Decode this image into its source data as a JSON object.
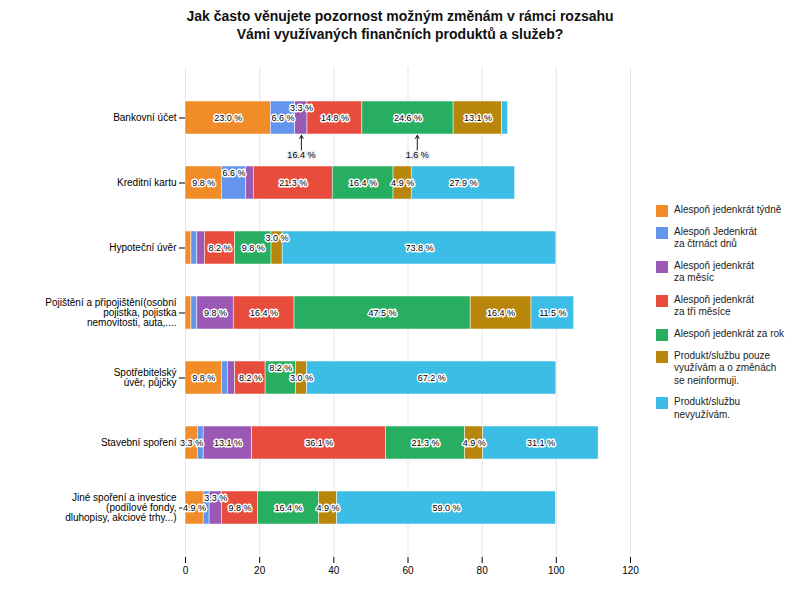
{
  "chart_data": {
    "type": "bar",
    "orientation": "horizontal",
    "stacked": true,
    "title": "Jak často věnujete pozornost možným změnám v rámci rozsahu\nVámi využívaných finančních produktů a služeb?",
    "categories": [
      "Bankovní účet",
      "Kreditní kartu",
      "Hypoteční úvěr",
      "Pojištění a připojištění(osobní\npojistka, pojistka\nnemovitosti, auta,....",
      "Spotřebitelský\núvěr, půjčky",
      "Stavební spoření",
      "Jiné spoření a investice\n(podílové fondy,\ndluhopisy, akciové trhy...)"
    ],
    "series": [
      {
        "name": "Alespoň jedenkrát týdně",
        "color": "#F28C28",
        "values": [
          23.0,
          9.8,
          1.6,
          1.6,
          9.8,
          3.3,
          4.9
        ],
        "value_labels": [
          "23.0 %",
          "9.8 %",
          null,
          null,
          "9.8 %",
          "3.3 %",
          "4.9 %"
        ]
      },
      {
        "name": "Alespoň Jedenkrát\nza čtrnáct dnů",
        "color": "#6495ED",
        "values": [
          6.6,
          6.6,
          1.6,
          1.6,
          1.6,
          1.6,
          1.6
        ],
        "value_labels": [
          "6.6 %",
          "6.6 %",
          null,
          null,
          null,
          null,
          null
        ]
      },
      {
        "name": "Alespoň jedenkrát\nza měsíc",
        "color": "#9B59B6",
        "values": [
          3.3,
          2.0,
          2.0,
          9.8,
          2.0,
          13.1,
          3.3
        ],
        "value_labels": [
          "3.3 %",
          null,
          null,
          "9.8 %",
          null,
          "13.1 %",
          "3.3 %"
        ]
      },
      {
        "name": "Alespoň jedenkrát\nza tři měsíce",
        "color": "#E74C3C",
        "values": [
          14.8,
          21.3,
          8.2,
          16.4,
          8.2,
          36.1,
          9.8
        ],
        "value_labels": [
          "14.8 %",
          "21.3 %",
          "8.2 %",
          "16.4 %",
          "8.2 %",
          "36.1 %",
          "9.8 %"
        ]
      },
      {
        "name": "Alespoň jedenkrát za rok",
        "color": "#27AE60",
        "values": [
          24.6,
          16.4,
          9.8,
          47.5,
          8.2,
          21.3,
          16.4
        ],
        "value_labels": [
          "24.6 %",
          "16.4 %",
          "9.8 %",
          "47.5 %",
          "8.2 %",
          "21.3 %",
          "16.4 %"
        ]
      },
      {
        "name": "Produkt/službu pouze\nvyužívám a o změnách\nse neinformuji.",
        "color": "#B8860B",
        "values": [
          13.1,
          4.9,
          3.0,
          16.4,
          3.0,
          4.9,
          4.9
        ],
        "value_labels": [
          "13.1 %",
          "4.9 %",
          "3.0 %",
          "16.4 %",
          "3.0 %",
          "4.9 %",
          "4.9 %"
        ]
      },
      {
        "name": "Produkt/službu\nnevyužívám.",
        "color": "#3BBDE5",
        "values": [
          1.6,
          27.9,
          73.8,
          11.5,
          67.2,
          31.1,
          59.0
        ],
        "value_labels": [
          null,
          "27.9 %",
          "73.8 %",
          "11.5 %",
          "67.2 %",
          "31.1 %",
          "59.0 %"
        ]
      }
    ],
    "xlim": [
      0,
      120
    ],
    "xticks": [
      0,
      20,
      40,
      60,
      80,
      100,
      120
    ],
    "grid": true,
    "legend": "right",
    "data_labels": true,
    "annotations": [
      {
        "text": "16.4 %",
        "x": 31.25,
        "category": "Bankovní účet"
      },
      {
        "text": "1.6 %",
        "x": 62.5,
        "category": "Bankovní účet"
      }
    ]
  }
}
